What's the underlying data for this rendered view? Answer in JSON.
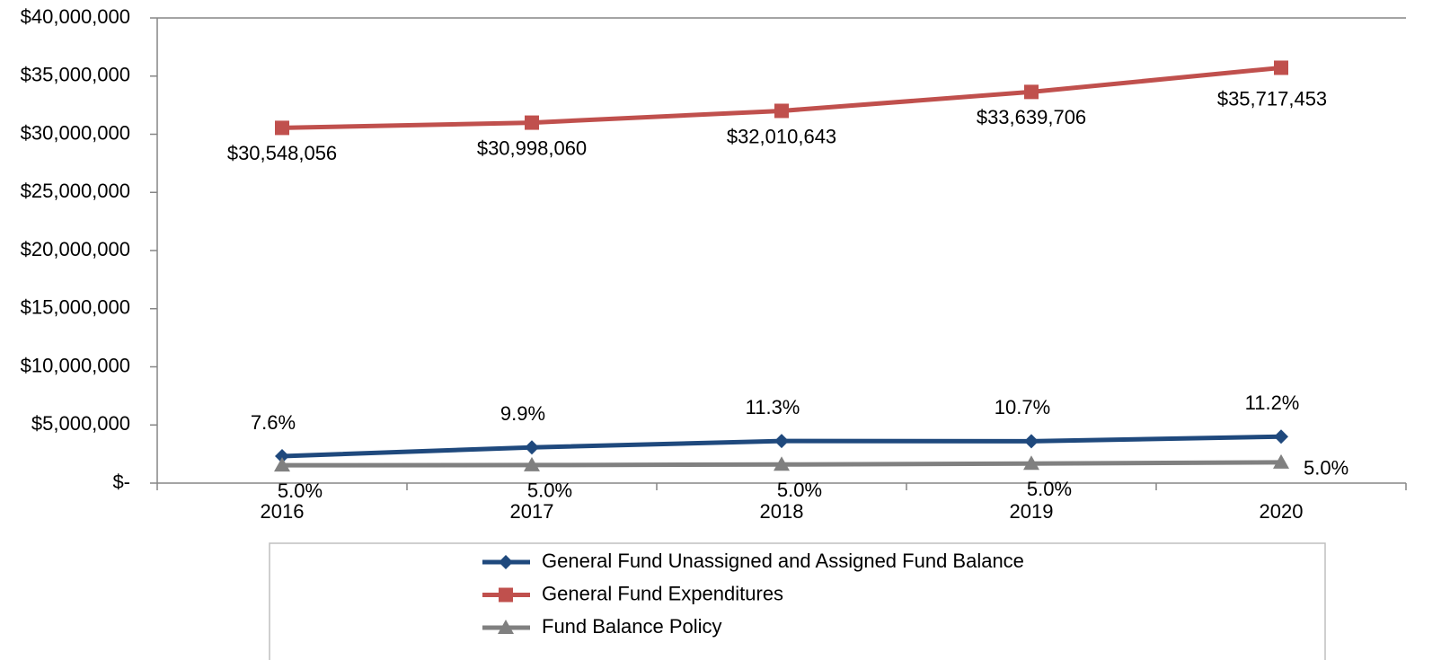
{
  "chart_data": {
    "type": "line",
    "categories": [
      "2016",
      "2017",
      "2018",
      "2019",
      "2020"
    ],
    "series": [
      {
        "name": "General Fund Unassigned and Assigned Fund Balance",
        "color": "#1f497d",
        "marker": "diamond",
        "values": [
          2320000,
          3070000,
          3620000,
          3600000,
          4000000
        ],
        "point_labels": [
          "7.6%",
          "9.9%",
          "11.3%",
          "10.7%",
          "11.2%"
        ]
      },
      {
        "name": "General Fund Expenditures",
        "color": "#c0504d",
        "marker": "square",
        "values": [
          30548056,
          30998060,
          32010643,
          33639706,
          35717453
        ],
        "value_labels": [
          "$30,548,056",
          "$30,998,060",
          "$32,010,643",
          "$33,639,706",
          "$35,717,453"
        ]
      },
      {
        "name": "Fund Balance Policy",
        "color": "#808080",
        "marker": "triangle",
        "values": [
          1530000,
          1550000,
          1600000,
          1680000,
          1790000
        ],
        "point_labels": [
          "5.0%",
          "5.0%",
          "5.0%",
          "5.0%",
          "5.0%"
        ]
      }
    ],
    "ylim": [
      0,
      40000000
    ],
    "yticks": [
      {
        "value": 0,
        "label": "$-"
      },
      {
        "value": 5000000,
        "label": "$5,000,000"
      },
      {
        "value": 10000000,
        "label": "$10,000,000"
      },
      {
        "value": 15000000,
        "label": "$15,000,000"
      },
      {
        "value": 20000000,
        "label": "$20,000,000"
      },
      {
        "value": 25000000,
        "label": "$25,000,000"
      },
      {
        "value": 30000000,
        "label": "$30,000,000"
      },
      {
        "value": 35000000,
        "label": "$35,000,000"
      },
      {
        "value": 40000000,
        "label": "$40,000,000"
      }
    ],
    "grid": false,
    "legend": "bottom"
  }
}
